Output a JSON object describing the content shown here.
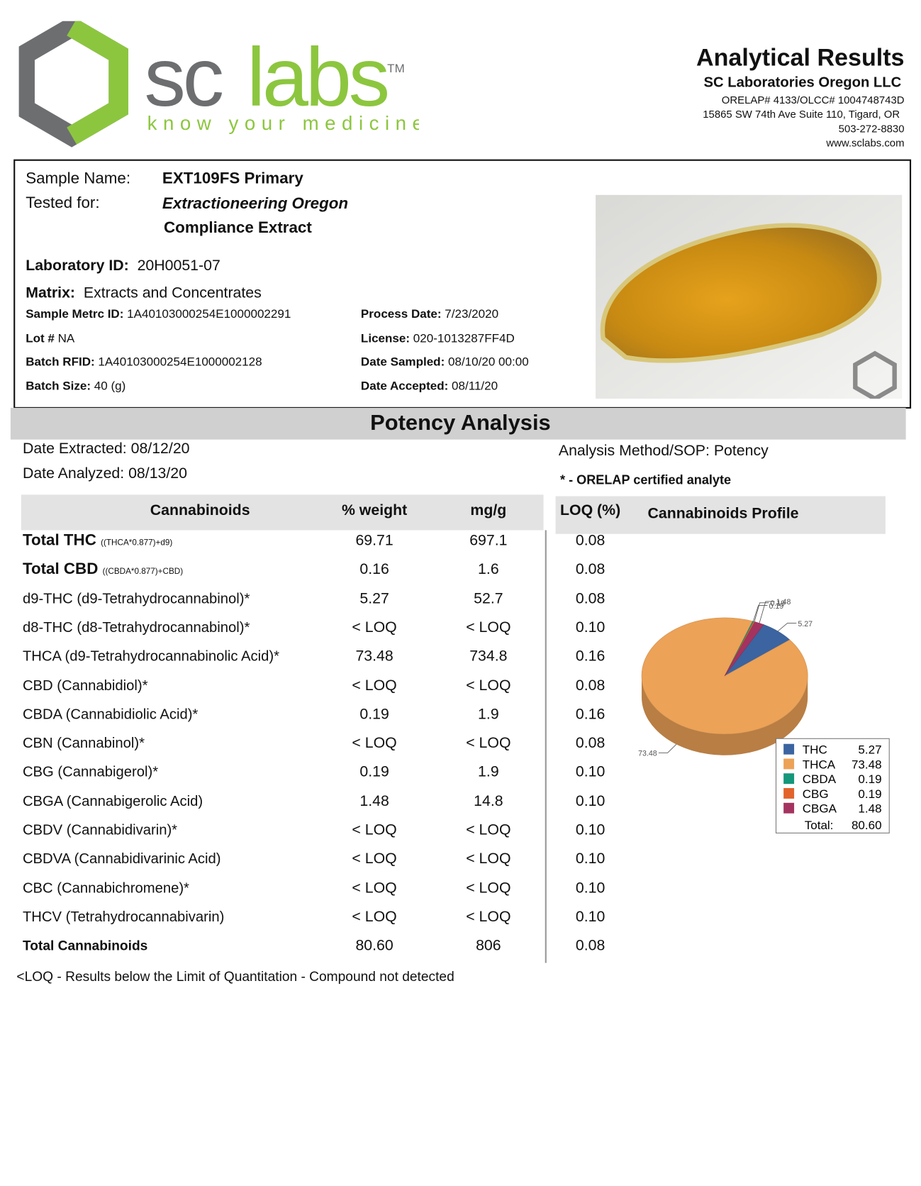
{
  "header": {
    "logo_sc": "sc",
    "logo_labs": "labs",
    "logo_tm": "TM",
    "tagline": "know your medicine",
    "title": "Analytical Results",
    "company": "SC Laboratories Oregon LLC",
    "accreditation": "ORELAP# 4133/OLCC# 1004748743D",
    "address": "15865 SW 74th Ave Suite 110, Tigard, OR",
    "phone": "503-272-8830",
    "website": "www.sclabs.com"
  },
  "sample": {
    "name_label": "Sample Name:",
    "name": "EXT109FS Primary",
    "tested_for_label": "Tested for:",
    "client": "Extractioneering Oregon",
    "product": "Compliance Extract",
    "lab_id": {
      "label": "Laboratory ID:",
      "value": "20H0051-07"
    },
    "matrix": {
      "label": "Matrix:",
      "value": "Extracts and Concentrates"
    },
    "fields_left": [
      {
        "label": "Sample Metrc ID:",
        "value": "1A40103000254E1000002291"
      },
      {
        "label": "Lot #",
        "value": "NA"
      },
      {
        "label": "Batch RFID:",
        "value": "1A40103000254E1000002128"
      },
      {
        "label": "Batch Size:",
        "value": "40 (g)"
      }
    ],
    "fields_right": [
      {
        "label": "Process Date:",
        "value": "7/23/2020"
      },
      {
        "label": "License:",
        "value": "020-1013287FF4D"
      },
      {
        "label": "Date Sampled:",
        "value": "08/10/20  00:00"
      },
      {
        "label": "Date Accepted:",
        "value": "08/11/20"
      }
    ]
  },
  "potency": {
    "title": "Potency Analysis",
    "date_extracted": "Date Extracted: 08/12/20",
    "date_analyzed": "Date Analyzed: 08/13/20",
    "method": "Analysis Method/SOP: Potency",
    "certified_note": "* - ORELAP certified analyte",
    "table": {
      "columns": [
        "Cannabinoids",
        "% weight",
        "mg/g",
        "LOQ (%)"
      ],
      "rows": [
        {
          "analyte": "Total THC",
          "formula": "((THCA*0.877)+d9)",
          "weight": "69.71",
          "mg_g": "697.1",
          "loq": "0.08"
        },
        {
          "analyte": "Total CBD",
          "formula": "((CBDA*0.877)+CBD)",
          "weight": "0.16",
          "mg_g": "1.6",
          "loq": "0.08"
        },
        {
          "analyte": "d9-THC (d9-Tetrahydrocannabinol)*",
          "weight": "5.27",
          "mg_g": "52.7",
          "loq": "0.08"
        },
        {
          "analyte": "d8-THC (d8-Tetrahydrocannabinol)*",
          "weight": "< LOQ",
          "mg_g": "< LOQ",
          "loq": "0.10"
        },
        {
          "analyte": "THCA (d9-Tetrahydrocannabinolic Acid)*",
          "weight": "73.48",
          "mg_g": "734.8",
          "loq": "0.16"
        },
        {
          "analyte": "CBD (Cannabidiol)*",
          "weight": "< LOQ",
          "mg_g": "< LOQ",
          "loq": "0.08"
        },
        {
          "analyte": "CBDA (Cannabidiolic Acid)*",
          "weight": "0.19",
          "mg_g": "1.9",
          "loq": "0.16"
        },
        {
          "analyte": "CBN (Cannabinol)*",
          "weight": "< LOQ",
          "mg_g": "< LOQ",
          "loq": "0.08"
        },
        {
          "analyte": "CBG (Cannabigerol)*",
          "weight": "0.19",
          "mg_g": "1.9",
          "loq": "0.10"
        },
        {
          "analyte": "CBGA (Cannabigerolic Acid)",
          "weight": "1.48",
          "mg_g": "14.8",
          "loq": "0.10"
        },
        {
          "analyte": "CBDV (Cannabidivarin)*",
          "weight": "< LOQ",
          "mg_g": "< LOQ",
          "loq": "0.10"
        },
        {
          "analyte": "CBDVA (Cannabidivarinic Acid)",
          "weight": "< LOQ",
          "mg_g": "< LOQ",
          "loq": "0.10"
        },
        {
          "analyte": "CBC (Cannabichromene)*",
          "weight": "< LOQ",
          "mg_g": "< LOQ",
          "loq": "0.10"
        },
        {
          "analyte": "THCV (Tetrahydrocannabivarin)",
          "weight": "< LOQ",
          "mg_g": "< LOQ",
          "loq": "0.10"
        },
        {
          "analyte": "Total Cannabinoids",
          "weight": "80.60",
          "mg_g": "806",
          "loq": "0.08"
        }
      ]
    },
    "footnote": "<LOQ - Results below the Limit of Quantitation - Compound not detected"
  },
  "chart_data": {
    "type": "pie",
    "title": "Cannabinoids Profile",
    "categories": [
      "THC",
      "THCA",
      "CBDA",
      "CBG",
      "CBGA"
    ],
    "values": [
      5.27,
      73.48,
      0.19,
      0.19,
      1.48
    ],
    "colors": [
      "#3b64a0",
      "#eca257",
      "#14977a",
      "#e2632b",
      "#a5335f"
    ],
    "total_label": "Total:",
    "total": "80.60"
  }
}
